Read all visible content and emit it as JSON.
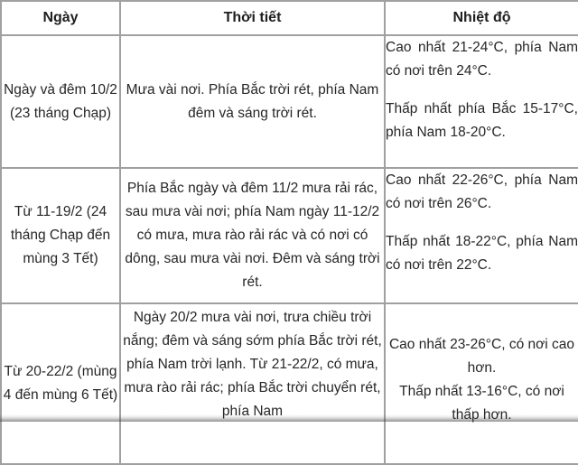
{
  "page": {
    "background": "#ffffff",
    "border_color": "#a0a0a0",
    "text_color": "#262626"
  },
  "table": {
    "columns": [
      {
        "label": "Ngày"
      },
      {
        "label": "Thời tiết"
      },
      {
        "label": "Nhiệt độ"
      }
    ],
    "rows": [
      {
        "date": "Ngày và đêm 10/2 (23 tháng Chạp)",
        "weather": "Mưa vài nơi. Phía Bắc trời rét, phía Nam đêm và sáng trời rét.",
        "temp_high": "Cao nhất 21-24°C, phía Nam có nơi trên 24°C.",
        "temp_low": "Thấp nhất phía Bắc 15-17°C, phía Nam 18-20°C."
      },
      {
        "date": "Từ 11-19/2 (24 tháng Chạp đến mùng 3 Tết)",
        "weather": "Phía Bắc ngày và đêm 11/2 mưa rải rác, sau mưa vài nơi; phía Nam ngày 11-12/2 có mưa, mưa rào rải rác và có nơi có dông, sau mưa vài nơi. Đêm và sáng trời rét.",
        "temp_high": "Cao nhất 22-26°C, phía Nam có nơi trên 26°C.",
        "temp_low": "Thấp nhất 18-22°C, phía Nam có nơi trên 22°C."
      },
      {
        "date": "Từ 20-22/2 (mùng 4 đến mùng 6 Tết)",
        "weather": "Ngày 20/2 mưa vài nơi, trưa chiều trời nắng; đêm và sáng sớm phía Bắc trời rét, phía Nam trời lạnh. Từ 21-22/2, có mưa, mưa rào rải rác; phía Bắc trời chuyển rét, phía Nam",
        "temp_high": "Cao nhất 23-26°C, có nơi cao hơn.",
        "temp_low": "Thấp nhất 13-16°C, có nơi thấp hơn."
      }
    ]
  },
  "chart_data": {
    "type": "table",
    "title": "",
    "columns": [
      "Ngày",
      "Thời tiết",
      "Nhiệt độ"
    ],
    "rows": [
      [
        "Ngày và đêm 10/2 (23 tháng Chạp)",
        "Mưa vài nơi. Phía Bắc trời rét, phía Nam đêm và sáng trời rét.",
        "Cao nhất 21-24°C, phía Nam có nơi trên 24°C. Thấp nhất phía Bắc 15-17°C, phía Nam 18-20°C."
      ],
      [
        "Từ 11-19/2 (24 tháng Chạp đến mùng 3 Tết)",
        "Phía Bắc ngày và đêm 11/2 mưa rải rác, sau mưa vài nơi; phía Nam ngày 11-12/2 có mưa, mưa rào rải rác và có nơi có dông, sau mưa vài nơi. Đêm và sáng trời rét.",
        "Cao nhất 22-26°C, phía Nam có nơi trên 26°C. Thấp nhất 18-22°C, phía Nam có nơi trên 22°C."
      ],
      [
        "Từ 20-22/2 (mùng 4 đến mùng 6 Tết)",
        "Ngày 20/2 mưa vài nơi, trưa chiều trời nắng; đêm và sáng sớm phía Bắc trời rét, phía Nam trời lạnh. Từ 21-22/2, có mưa, mưa rào rải rác; phía Bắc trời chuyển rét, phía Nam",
        "Cao nhất 23-26°C, có nơi cao hơn. Thấp nhất 13-16°C, có nơi thấp hơn."
      ]
    ]
  }
}
